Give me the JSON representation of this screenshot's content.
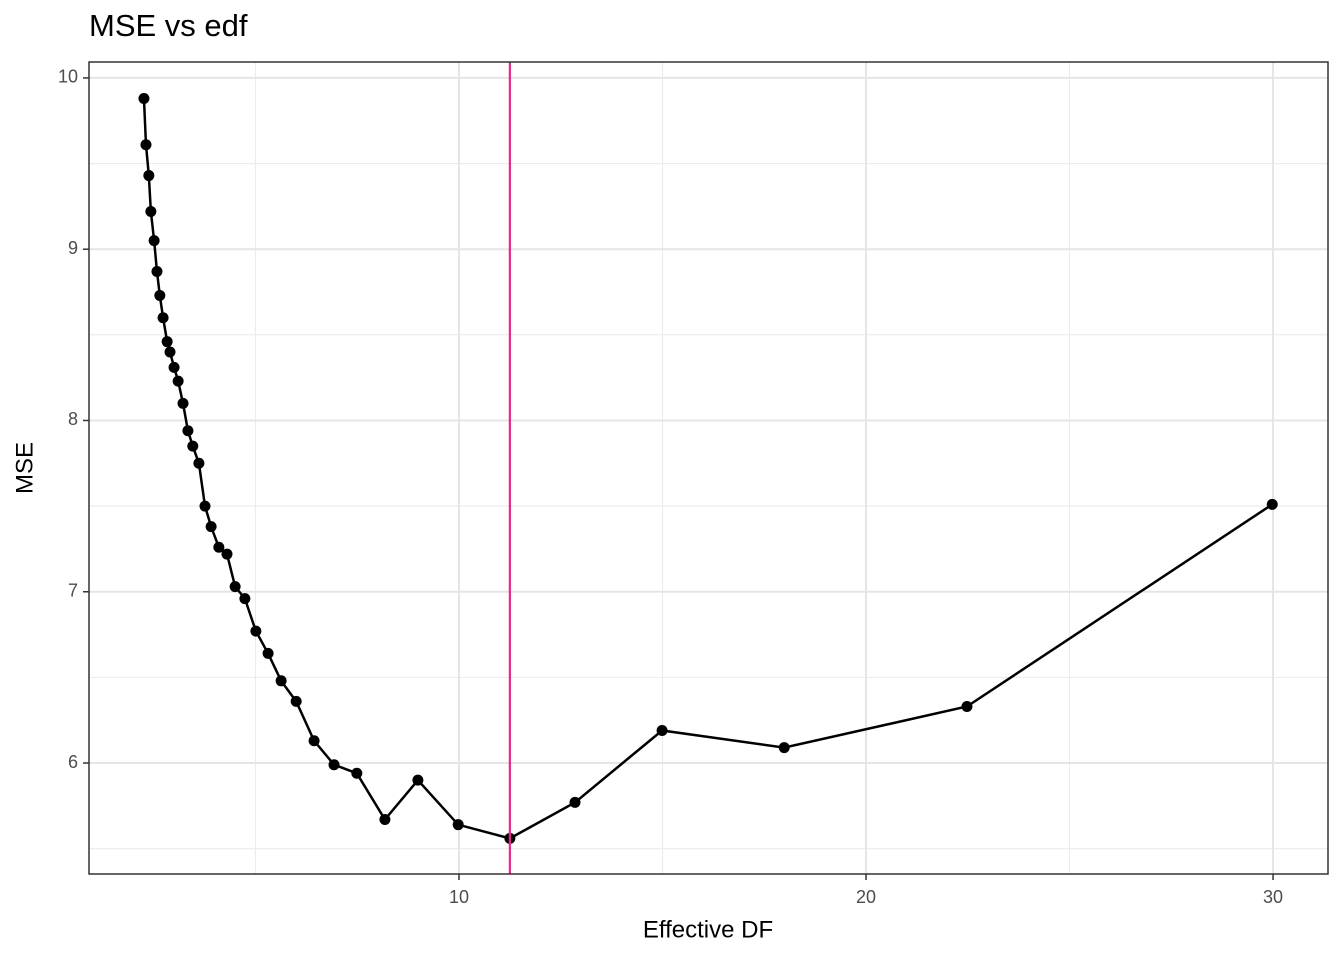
{
  "chart_data": {
    "type": "line",
    "title": "MSE vs edf",
    "x_label": "Effective DF",
    "y_label": "MSE",
    "x": [
      2.26,
      2.31,
      2.38,
      2.43,
      2.51,
      2.58,
      2.65,
      2.73,
      2.83,
      2.9,
      3.0,
      3.1,
      3.22,
      3.34,
      3.46,
      3.61,
      3.76,
      3.91,
      4.1,
      4.3,
      4.5,
      4.74,
      5.01,
      5.31,
      5.63,
      6.0,
      6.44,
      6.93,
      7.49,
      8.18,
      8.99,
      9.98,
      11.25,
      12.85,
      14.99,
      17.99,
      22.48,
      29.98
    ],
    "series": [
      {
        "color": "#000000",
        "values": [
          9.88,
          9.61,
          9.43,
          9.22,
          9.05,
          8.87,
          8.73,
          8.6,
          8.46,
          8.4,
          8.31,
          8.23,
          8.1,
          7.94,
          7.85,
          7.75,
          7.5,
          7.38,
          7.26,
          7.22,
          7.03,
          6.96,
          6.77,
          6.64,
          6.48,
          6.36,
          6.13,
          5.99,
          5.94,
          5.67,
          5.9,
          5.64,
          5.56,
          5.77,
          6.19,
          6.09,
          6.33,
          7.51
        ]
      }
    ],
    "vline": {
      "x": 11.25,
      "color": "#e7298a"
    },
    "xlim": [
      0.91,
      31.35
    ],
    "ylim": [
      5.352,
      10.093
    ],
    "xticks": [
      10,
      20,
      30
    ],
    "yticks": [
      6,
      7,
      8,
      9,
      10
    ],
    "grid": true
  }
}
